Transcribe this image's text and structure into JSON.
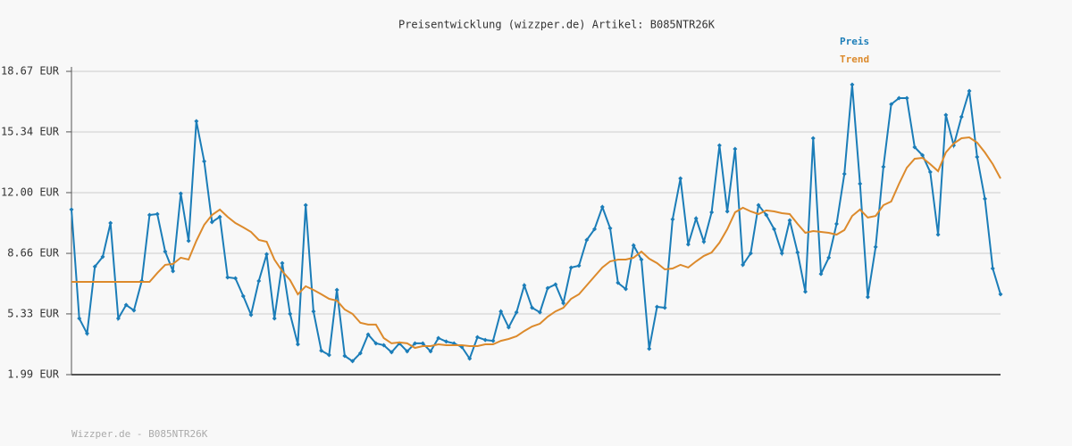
{
  "chart_data": {
    "type": "line",
    "title": "Preisentwicklung (wizzper.de) Artikel: B085NTR26K",
    "footer": "Wizzper.de - B085NTR26K",
    "ylim": [
      1.99,
      18.67
    ],
    "yticks": [
      {
        "value": 1.99,
        "label": "1.99 EUR"
      },
      {
        "value": 5.33,
        "label": "5.33 EUR"
      },
      {
        "value": 8.66,
        "label": "8.66 EUR"
      },
      {
        "value": 12.0,
        "label": "12.00 EUR"
      },
      {
        "value": 15.34,
        "label": "15.34 EUR"
      },
      {
        "value": 18.67,
        "label": "18.67 EUR"
      }
    ],
    "grid": true,
    "legend": "top-right",
    "series": [
      {
        "name": "Preis",
        "color": "#1b7db8",
        "markers": true,
        "values": [
          11.07,
          5.08,
          4.25,
          7.93,
          8.47,
          10.33,
          5.08,
          5.82,
          5.52,
          7.14,
          10.77,
          10.82,
          8.76,
          7.68,
          11.95,
          9.35,
          15.93,
          13.72,
          10.38,
          10.67,
          7.34,
          7.29,
          6.31,
          5.28,
          7.14,
          8.61,
          5.08,
          8.12,
          5.33,
          3.66,
          11.31,
          5.47,
          3.31,
          3.07,
          6.65,
          3.02,
          2.73,
          3.17,
          4.2,
          3.71,
          3.61,
          3.22,
          3.71,
          3.27,
          3.71,
          3.71,
          3.27,
          4.0,
          3.81,
          3.71,
          3.51,
          2.87,
          4.05,
          3.9,
          3.85,
          5.47,
          4.59,
          5.42,
          6.9,
          5.67,
          5.42,
          6.75,
          6.95,
          5.92,
          7.88,
          7.98,
          9.4,
          9.99,
          11.21,
          10.04,
          7.04,
          6.7,
          9.1,
          8.32,
          3.41,
          5.72,
          5.67,
          10.53,
          12.78,
          9.15,
          10.58,
          9.3,
          10.92,
          14.6,
          10.97,
          14.4,
          8.03,
          8.66,
          11.31,
          10.77,
          9.99,
          8.66,
          10.48,
          8.71,
          6.55,
          14.99,
          7.53,
          8.42,
          10.28,
          13.03,
          17.94,
          12.49,
          6.26,
          9.01,
          13.42,
          16.86,
          17.2,
          17.2,
          14.5,
          14.06,
          13.13,
          9.69,
          16.27,
          14.6,
          16.17,
          17.59,
          13.96,
          11.66,
          7.83,
          6.41
        ]
      },
      {
        "name": "Trend",
        "color": "#dc8a2c",
        "markers": false,
        "values": [
          7.09,
          7.09,
          7.09,
          7.09,
          7.09,
          7.09,
          7.09,
          7.09,
          7.09,
          7.09,
          7.09,
          7.58,
          8.03,
          8.08,
          8.42,
          8.32,
          9.35,
          10.23,
          10.77,
          11.07,
          10.67,
          10.33,
          10.09,
          9.84,
          9.4,
          9.3,
          8.32,
          7.68,
          7.19,
          6.41,
          6.85,
          6.65,
          6.41,
          6.16,
          6.06,
          5.57,
          5.33,
          4.84,
          4.74,
          4.74,
          4.0,
          3.71,
          3.76,
          3.71,
          3.46,
          3.56,
          3.56,
          3.66,
          3.61,
          3.61,
          3.61,
          3.56,
          3.56,
          3.66,
          3.66,
          3.85,
          3.95,
          4.1,
          4.39,
          4.64,
          4.79,
          5.18,
          5.47,
          5.67,
          6.16,
          6.41,
          6.9,
          7.39,
          7.88,
          8.22,
          8.32,
          8.32,
          8.42,
          8.76,
          8.37,
          8.12,
          7.78,
          7.83,
          8.03,
          7.88,
          8.22,
          8.52,
          8.71,
          9.25,
          9.99,
          10.92,
          11.17,
          10.97,
          10.82,
          11.02,
          10.97,
          10.87,
          10.82,
          10.28,
          9.79,
          9.89,
          9.84,
          9.79,
          9.69,
          9.94,
          10.72,
          11.07,
          10.63,
          10.72,
          11.31,
          11.51,
          12.49,
          13.37,
          13.86,
          13.91,
          13.57,
          13.18,
          14.21,
          14.7,
          14.99,
          15.04,
          14.75,
          14.21,
          13.57,
          12.78
        ]
      }
    ]
  }
}
